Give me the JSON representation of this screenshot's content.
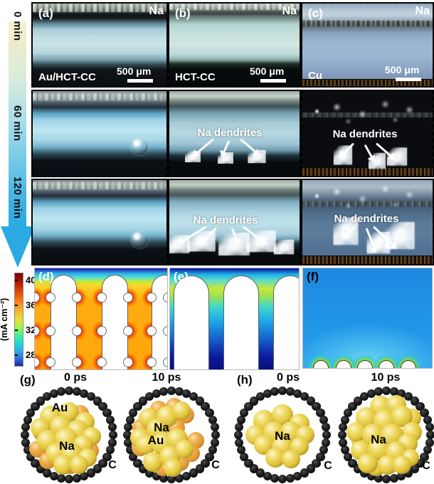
{
  "timeline": {
    "labels": [
      "0 min",
      "60 min",
      "120 min"
    ]
  },
  "panels": {
    "a": {
      "letter": "(a)",
      "electrode": "Na",
      "substrate": "Au/HCT-CC",
      "scale": "500 μm"
    },
    "b": {
      "letter": "(b)",
      "electrode": "Na",
      "substrate": "HCT-CC",
      "scale": "500 μm"
    },
    "c": {
      "letter": "(c)",
      "electrode": "Na",
      "substrate": "Cu",
      "scale": "500 μm"
    },
    "dendrites_label": "Na dendrites"
  },
  "colorbar": {
    "title": "(mA cm⁻²)",
    "ticks": [
      "40",
      "36",
      "32",
      "28"
    ]
  },
  "simulation": {
    "d": {
      "letter": "(d)"
    },
    "e": {
      "letter": "(e)"
    },
    "f": {
      "letter": "(f)"
    }
  },
  "md": {
    "g": {
      "letter": "(g)",
      "time0": "0 ps",
      "time1": "10 ps",
      "frame0_atoms": [
        "Au",
        "Na"
      ],
      "frame1_atoms": [
        "Na",
        "Au"
      ],
      "ring_label": "C"
    },
    "h": {
      "letter": "(h)",
      "time0": "0 ps",
      "time1": "10 ps",
      "frame0_atoms": [
        "Na"
      ],
      "frame1_atoms": [
        "Na"
      ],
      "ring_label": "C"
    }
  },
  "colors": {
    "timeline_blue": "#2aa9e2",
    "na_atom_yellow": "#e2c53e",
    "au_atom_orange": "#e09a38",
    "carbon_black": "#141414",
    "hotspot_red": "#e11400"
  }
}
